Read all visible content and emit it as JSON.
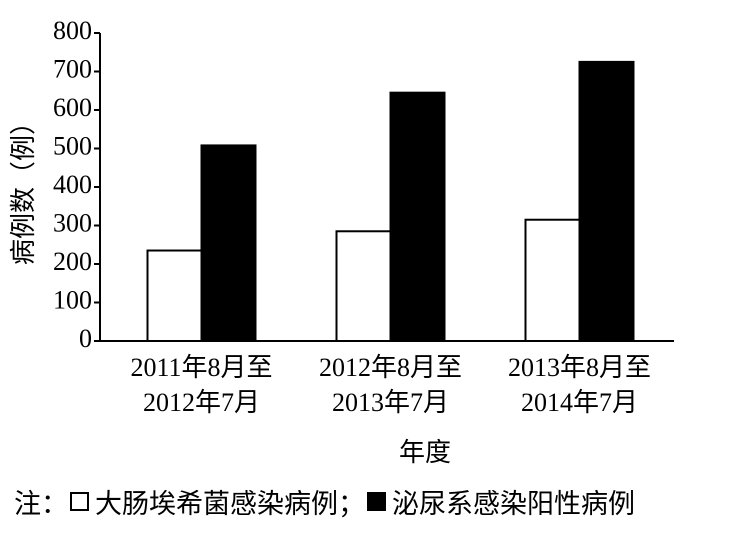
{
  "chart_data": {
    "type": "bar",
    "ylabel": "病例数（例）",
    "xlabel": "年度",
    "categories": [
      [
        "2011年8月至",
        "2012年7月"
      ],
      [
        "2012年8月至",
        "2013年7月"
      ],
      [
        "2013年8月至",
        "2014年7月"
      ]
    ],
    "series": [
      {
        "name": "大肠埃希菌感染病例",
        "color": "#ffffff",
        "values": [
          235,
          285,
          315
        ]
      },
      {
        "name": "泌尿系感染阳性病例",
        "color": "#000000",
        "values": [
          508,
          645,
          725
        ]
      }
    ],
    "ylim": [
      0,
      800
    ],
    "yticks": [
      0,
      100,
      200,
      300,
      400,
      500,
      600,
      700,
      800
    ],
    "legend_note": "注：",
    "legend_separator": "；"
  }
}
